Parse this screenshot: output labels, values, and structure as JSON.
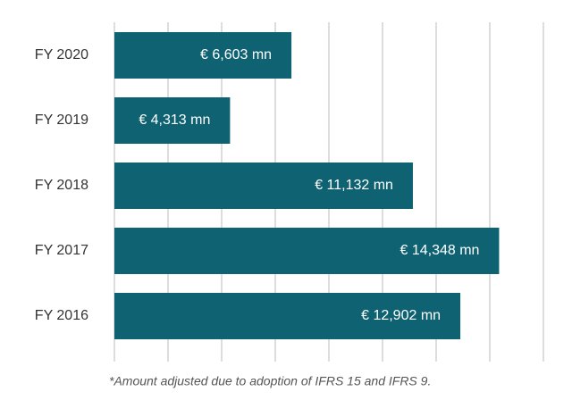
{
  "chart_data": {
    "type": "bar",
    "orientation": "horizontal",
    "categories": [
      "FY 2020",
      "FY 2019",
      "FY 2018",
      "FY 2017",
      "FY 2016"
    ],
    "values": [
      6603,
      4313,
      11132,
      14348,
      12902
    ],
    "value_labels": [
      "€ 6,603 mn",
      "€ 4,313 mn",
      "€ 11,132 mn",
      "€ 14,348 mn",
      "€ 12,902 mn"
    ],
    "color": "#0e6272",
    "xlim": [
      0,
      16000
    ],
    "xticks": [
      0,
      2000,
      4000,
      6000,
      8000,
      10000,
      12000,
      14000,
      16000
    ],
    "grid": true,
    "note": "*Amount adjusted due to adoption of IFRS 15 and IFRS 9."
  }
}
